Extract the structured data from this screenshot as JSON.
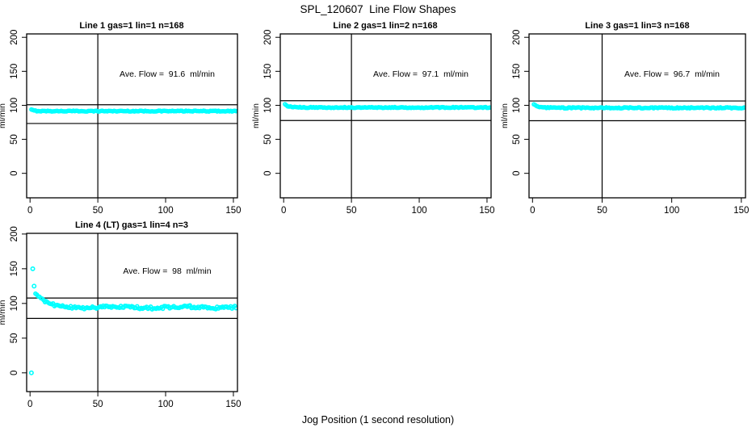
{
  "page": {
    "main_title": "SPL_120607  Line Flow Shapes",
    "x_axis_label": "Jog Position (1 second resolution)",
    "background_color": "#ffffff",
    "point_color": "#00ffff",
    "axis_color": "#000000"
  },
  "chart_data": [
    {
      "type": "scatter",
      "title": "Line 1 gas=1 lin=1 n=168",
      "annotation": "Ave. Flow =  91.6  ml/min",
      "ave_flow": 91.6,
      "ylabel": "ml/min",
      "x_ticks": [
        0,
        50,
        100,
        150
      ],
      "y_ticks": [
        0,
        50,
        100,
        150,
        200
      ],
      "xlim": [
        -2.5,
        153
      ],
      "ylim": [
        -36,
        205
      ],
      "grid": false,
      "vline_x": 50,
      "hlines": [
        100.8,
        73.3
      ],
      "series": {
        "name": "flow-points",
        "x_start": 1,
        "x_end": 152,
        "y_initial": 93.5,
        "y_settle": 91.5,
        "tau": 2,
        "noise": 0.65,
        "wobble": 0,
        "outliers": []
      }
    },
    {
      "type": "scatter",
      "title": "Line 2 gas=1 lin=2 n=168",
      "annotation": "Ave. Flow =  97.1  ml/min",
      "ave_flow": 97.1,
      "ylabel": "ml/min",
      "x_ticks": [
        0,
        50,
        100,
        150
      ],
      "y_ticks": [
        0,
        50,
        100,
        150,
        200
      ],
      "xlim": [
        -2.5,
        153
      ],
      "ylim": [
        -36,
        205
      ],
      "grid": false,
      "vline_x": 50,
      "hlines": [
        106.8,
        77.7
      ],
      "series": {
        "name": "flow-points",
        "x_start": 1,
        "x_end": 152,
        "y_initial": 101,
        "y_settle": 96.8,
        "tau": 3,
        "noise": 0.7,
        "wobble": 0,
        "outliers": []
      }
    },
    {
      "type": "scatter",
      "title": "Line 3 gas=1 lin=3 n=168",
      "annotation": "Ave. Flow =  96.7  ml/min",
      "ave_flow": 96.7,
      "ylabel": "ml/min",
      "x_ticks": [
        0,
        50,
        100,
        150
      ],
      "y_ticks": [
        0,
        50,
        100,
        150,
        200
      ],
      "xlim": [
        -2.5,
        153
      ],
      "ylim": [
        -36,
        205
      ],
      "grid": false,
      "vline_x": 50,
      "hlines": [
        106.4,
        77.4
      ],
      "series": {
        "name": "flow-points",
        "x_start": 1,
        "x_end": 152,
        "y_initial": 101.5,
        "y_settle": 96.3,
        "tau": 3,
        "noise": 0.8,
        "wobble": 0,
        "outliers": []
      }
    },
    {
      "type": "scatter",
      "title": "Line 4 (LT) gas=1 lin=4 n=3",
      "annotation": "Ave. Flow =  98  ml/min",
      "ave_flow": 98,
      "ylabel": "ml/min",
      "x_ticks": [
        0,
        50,
        100,
        150
      ],
      "y_ticks": [
        0,
        50,
        100,
        150,
        200
      ],
      "xlim": [
        -2.5,
        153
      ],
      "ylim": [
        -27,
        201
      ],
      "grid": false,
      "vline_x": 50,
      "hlines": [
        107.8,
        78.4
      ],
      "series": {
        "name": "flow-points",
        "x_start": 4,
        "x_end": 152,
        "y_initial": 114,
        "y_settle": 94.5,
        "tau": 7,
        "noise": 2.0,
        "wobble": 1.0,
        "outliers": [
          [
            1,
            0
          ],
          [
            2,
            150
          ],
          [
            3,
            125
          ]
        ]
      }
    }
  ]
}
